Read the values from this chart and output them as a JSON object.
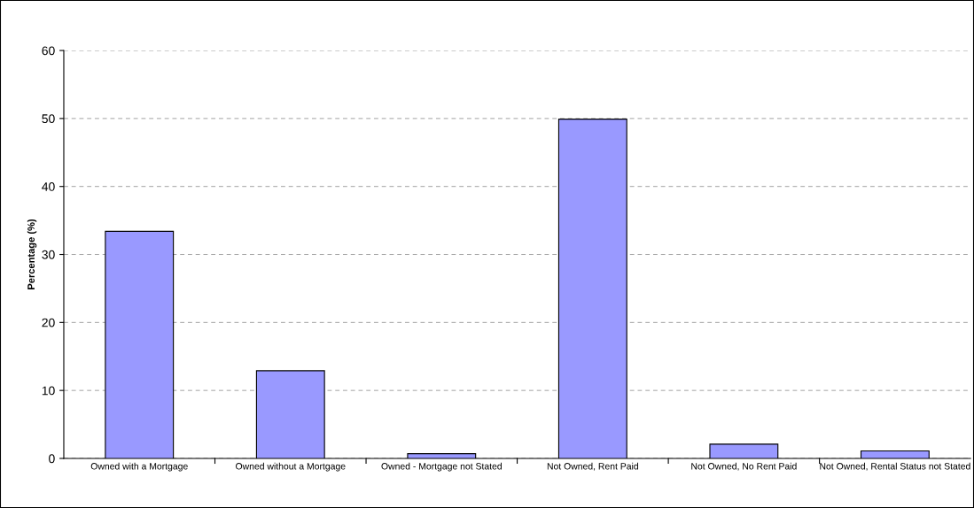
{
  "chart_data": {
    "type": "bar",
    "ylabel": "Percentage (%)",
    "categories": [
      "Owned with a Mortgage",
      "Owned without a Mortgage",
      "Owned - Mortgage not Stated",
      "Not Owned, Rent Paid",
      "Not Owned, No Rent Paid",
      "Not Owned, Rental Status not Stated"
    ],
    "values": [
      33.4,
      12.9,
      0.7,
      49.9,
      2.1,
      1.1
    ],
    "color": "#9999ff",
    "ylim": [
      0,
      60
    ],
    "yticks": [
      0,
      10,
      20,
      30,
      40,
      50,
      60
    ],
    "grid": "y"
  }
}
